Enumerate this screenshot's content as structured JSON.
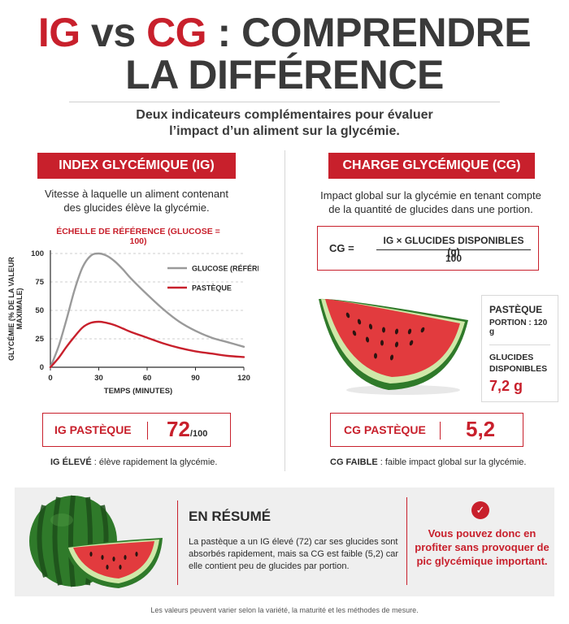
{
  "title": {
    "line1_ig": "IG",
    "line1_vs": " vs ",
    "line1_cg": "CG",
    "line1_rest": " : COMPRENDRE",
    "line2": "LA DIFFÉRENCE"
  },
  "subtitle": {
    "line1": "Deux indicateurs complémentaires pour évaluer",
    "line2": "l’impact d’un aliment sur la glycémie."
  },
  "ig": {
    "header": "INDEX GLYCÉMIQUE (IG)",
    "desc_line1": "Vitesse à laquelle un aliment contenant",
    "desc_line2": "des glucides élève la glycémie.",
    "scale_label": "ÉCHELLE DE RÉFÉRENCE (GLUCOSE = 100)",
    "result_label": "IG PASTÈQUE",
    "result_value": "72",
    "result_unit": "/100",
    "note_bold": "IG ÉLEVÉ",
    "note_rest": " : élève rapidement la glycémie."
  },
  "chart_data": {
    "type": "line",
    "xlabel": "TEMPS (MINUTES)",
    "ylabel": "GLYCÉMIE (% DE LA VALEUR MAXIMALE)",
    "xlim": [
      0,
      120
    ],
    "ylim": [
      0,
      100
    ],
    "x_ticks": [
      "0",
      "30",
      "60",
      "90",
      "120"
    ],
    "y_ticks": [
      "0",
      "25",
      "50",
      "75",
      "100"
    ],
    "grid": "horizontal-dashed",
    "legend": "top-right",
    "series": [
      {
        "name": "GLUCOSE (RÉFÉRENCE)",
        "color": "#9a9a9a",
        "x": [
          0,
          5,
          10,
          15,
          20,
          25,
          30,
          35,
          40,
          45,
          50,
          60,
          70,
          80,
          90,
          100,
          110,
          120
        ],
        "y": [
          0,
          18,
          42,
          68,
          88,
          98,
          100,
          98,
          93,
          86,
          78,
          64,
          51,
          40,
          32,
          26,
          22,
          18
        ]
      },
      {
        "name": "PASTÈQUE",
        "color": "#c8202c",
        "x": [
          0,
          5,
          10,
          15,
          20,
          25,
          30,
          35,
          40,
          45,
          50,
          60,
          70,
          80,
          90,
          100,
          110,
          120
        ],
        "y": [
          0,
          8,
          18,
          27,
          35,
          39,
          40,
          39,
          37,
          34,
          31,
          26,
          21,
          17,
          14,
          12,
          10,
          9
        ]
      }
    ]
  },
  "cg": {
    "header": "CHARGE GLYCÉMIQUE (CG)",
    "desc_line1": "Impact global sur la glycémie en tenant compte",
    "desc_line2": "de la quantité de glucides dans une portion.",
    "formula_lhs": "CG =",
    "formula_num": "IG × GLUCIDES DISPONIBLES (g)",
    "formula_den": "100",
    "info_title": "PASTÈQUE",
    "info_portion": "PORTION : 120 g",
    "info_glucides_label_1": "GLUCIDES",
    "info_glucides_label_2": "DISPONIBLES",
    "info_glucides_value": "7,2 g",
    "result_label": "CG PASTÈQUE",
    "result_value": "5,2",
    "note_bold": "CG FAIBLE",
    "note_rest": " : faible impact global sur la glycémie."
  },
  "summary": {
    "title": "EN RÉSUMÉ",
    "text": "La pastèque a un IG élevé (72) car ses glucides sont absorbés rapidement, mais sa CG est faible (5,2) car elle contient peu de glucides par portion.",
    "check_icon": "✓",
    "conclusion": "Vous pouvez donc en profiter sans provoquer de pic glycémique important."
  },
  "footnote": "Les valeurs peuvent varier selon la variété, la maturité et les méthodes de mesure.",
  "colors": {
    "accent": "#c8202c",
    "glucose_line": "#9a9a9a",
    "watermelon_flesh": "#e23b3e",
    "watermelon_rind": "#2f7a2a"
  }
}
